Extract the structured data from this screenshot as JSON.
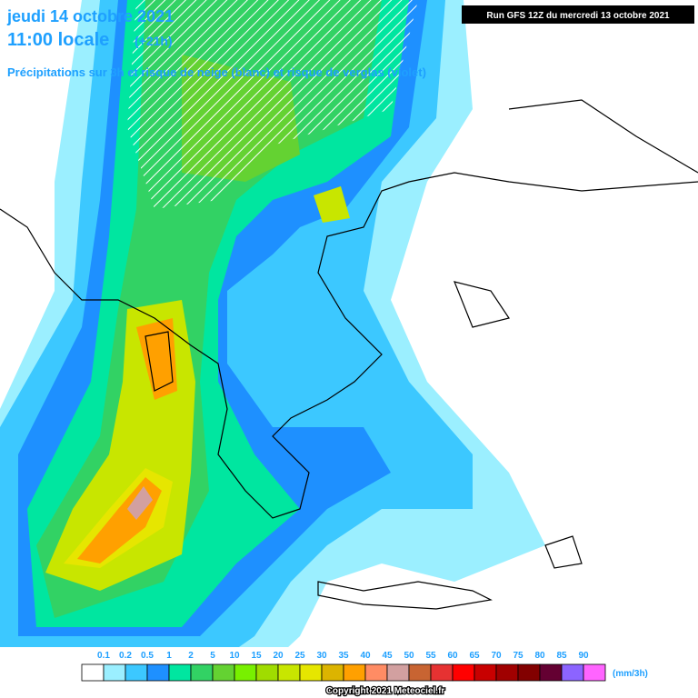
{
  "header": {
    "date": "jeudi 14 octobre 2021",
    "time": "11:00 locale",
    "offset": "(+21h)",
    "subtitle": "Précipitations sur 3h et risque de neige (blanc) et risque de verglas (violet)",
    "run": "Run GFS 12Z du mercredi 13 octobre 2021"
  },
  "legend": {
    "labels": [
      0.1,
      0.2,
      0.5,
      1,
      2,
      5,
      10,
      15,
      20,
      25,
      30,
      35,
      40,
      45,
      50,
      55,
      60,
      65,
      70,
      75,
      80,
      85,
      90
    ],
    "colors": [
      "#ffffff",
      "#9befff",
      "#3cc8ff",
      "#1e90ff",
      "#00e6a0",
      "#32d264",
      "#64d232",
      "#78f000",
      "#a0dc00",
      "#c8e600",
      "#e6e600",
      "#dcb400",
      "#ffa000",
      "#ff8c64",
      "#d2a0a0",
      "#c86432",
      "#e63232",
      "#ff0000",
      "#c80000",
      "#a00000",
      "#820000",
      "#640032",
      "#8c64ff",
      "#ff64ff"
    ],
    "unit": "(mm/3h)"
  },
  "footer": {
    "copyright": "Copyright 2021 Meteociel.fr"
  }
}
